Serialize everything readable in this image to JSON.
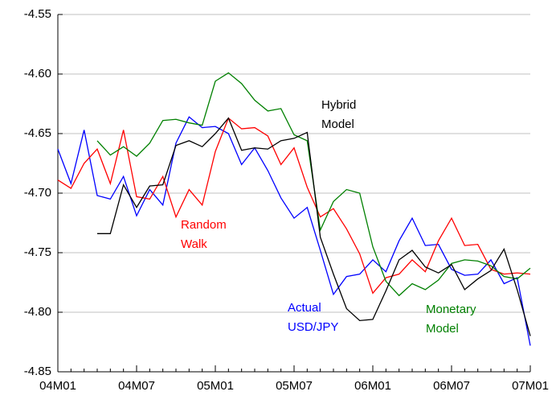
{
  "chart_data": {
    "type": "line",
    "categories": [
      "04M01",
      null,
      null,
      null,
      null,
      null,
      "04M07",
      null,
      null,
      null,
      null,
      null,
      "05M01",
      null,
      null,
      null,
      null,
      null,
      "05M07",
      null,
      null,
      null,
      null,
      null,
      "06M01",
      null,
      null,
      null,
      null,
      null,
      "06M07",
      null,
      null,
      null,
      null,
      null,
      "07M01"
    ],
    "ylim": [
      -4.85,
      -4.55
    ],
    "yticks": [
      -4.85,
      {
        "value": -4.8,
        "label": "-4.80"
      },
      -4.75,
      {
        "value": -4.7,
        "label": "-4.70"
      },
      -4.65,
      {
        "value": -4.6,
        "label": "-4.60"
      },
      -4.55
    ],
    "grid": true,
    "series": [
      {
        "label_lines": [
          "Actual",
          "USD/JPY"
        ],
        "color": "#0000ff",
        "values": [
          -4.663,
          -4.692,
          -4.647,
          -4.702,
          -4.705,
          -4.686,
          -4.719,
          -4.697,
          -4.71,
          -4.658,
          -4.636,
          -4.645,
          -4.644,
          -4.65,
          -4.676,
          -4.662,
          -4.681,
          -4.704,
          -4.721,
          -4.712,
          -4.748,
          -4.785,
          -4.77,
          -4.768,
          -4.756,
          -4.766,
          -4.74,
          -4.721,
          -4.744,
          -4.743,
          -4.764,
          -4.769,
          -4.768,
          -4.756,
          -4.776,
          -4.771,
          -4.828
        ]
      },
      {
        "label_lines": [
          "Random",
          "Walk"
        ],
        "color": "#ff0000",
        "values": [
          -4.689,
          -4.696,
          -4.675,
          -4.663,
          -4.692,
          -4.647,
          -4.703,
          -4.705,
          -4.686,
          -4.72,
          -4.697,
          -4.71,
          -4.665,
          -4.637,
          -4.646,
          -4.645,
          -4.652,
          -4.676,
          -4.662,
          -4.695,
          -4.72,
          -4.713,
          -4.73,
          -4.751,
          -4.784,
          -4.771,
          -4.768,
          -4.756,
          -4.766,
          -4.74,
          -4.721,
          -4.744,
          -4.743,
          -4.764,
          -4.768,
          -4.767,
          -4.768
        ]
      },
      {
        "label_lines": [
          "Monetary",
          "Model"
        ],
        "color": "#008000",
        "values": [
          null,
          null,
          null,
          -4.656,
          -4.668,
          -4.661,
          -4.669,
          -4.658,
          -4.639,
          -4.638,
          -4.641,
          -4.643,
          -4.606,
          -4.599,
          -4.608,
          -4.622,
          -4.631,
          -4.629,
          -4.651,
          -4.656,
          -4.731,
          -4.707,
          -4.697,
          -4.7,
          -4.745,
          -4.774,
          -4.786,
          -4.776,
          -4.781,
          -4.773,
          -4.759,
          -4.756,
          -4.757,
          -4.761,
          -4.77,
          -4.772,
          -4.763
        ]
      },
      {
        "label_lines": [
          "Hybrid",
          "Model"
        ],
        "color": "#000000",
        "values": [
          null,
          null,
          null,
          -4.734,
          -4.734,
          -4.693,
          -4.712,
          -4.694,
          -4.693,
          -4.66,
          -4.656,
          -4.661,
          -4.65,
          -4.637,
          -4.664,
          -4.662,
          -4.663,
          -4.656,
          -4.654,
          -4.649,
          -4.737,
          -4.768,
          -4.797,
          -4.807,
          -4.806,
          -4.782,
          -4.756,
          -4.748,
          -4.762,
          -4.767,
          -4.76,
          -4.781,
          -4.772,
          -4.765,
          -4.747,
          -4.781,
          -4.82
        ]
      }
    ]
  }
}
